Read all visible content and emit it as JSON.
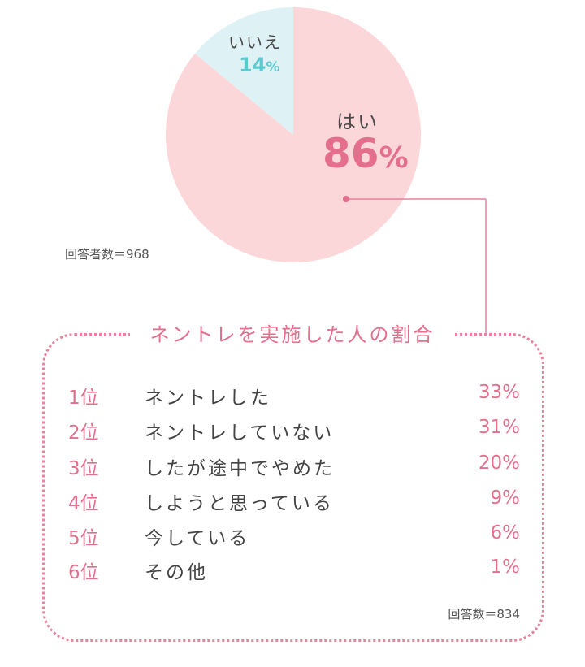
{
  "chart_data": [
    {
      "type": "pie",
      "categories": [
        "はい",
        "いいえ"
      ],
      "values": [
        86,
        14
      ],
      "value_format": "percent",
      "colors": {
        "はい": "#fcd7da",
        "いいえ": "#def2f5"
      },
      "note": "回答者数＝968"
    },
    {
      "type": "table",
      "title": "ネントレを実施した人の割合",
      "columns": [
        "rank",
        "answer",
        "percent"
      ],
      "rows": [
        {
          "rank": "1位",
          "answer": "ネントレした",
          "percent": "33%"
        },
        {
          "rank": "2位",
          "answer": "ネントレしていない",
          "percent": "31%"
        },
        {
          "rank": "3位",
          "answer": "したが途中でやめた",
          "percent": "20%"
        },
        {
          "rank": "4位",
          "answer": "しようと思っている",
          "percent": "9%"
        },
        {
          "rank": "5位",
          "answer": "今している",
          "percent": "6%"
        },
        {
          "rank": "6位",
          "answer": "その他",
          "percent": "1%"
        }
      ],
      "note": "回答数＝834"
    }
  ],
  "pie_labels": {
    "yes_label": "はい",
    "yes_value": "86",
    "yes_unit": "%",
    "no_label": "いいえ",
    "no_value": "14",
    "no_unit": "%"
  },
  "respondents_note": "回答者数＝968",
  "answers_note": "回答数＝834",
  "colors": {
    "accent": "#e46f8d",
    "accent_line": "#e8829b",
    "teal": "#5ec8cf"
  }
}
